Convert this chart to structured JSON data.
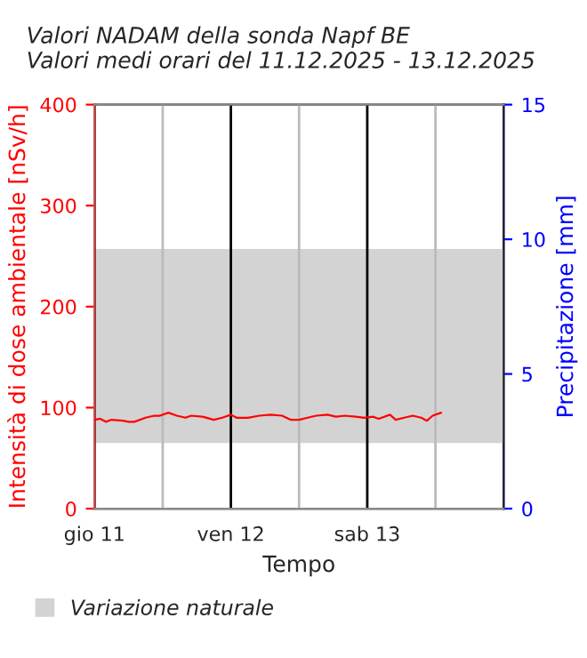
{
  "chart_data": {
    "type": "line",
    "title": "Valori NADAM della sonda Napf BE\nValori medi orari del 11.12.2025 - 13.12.2025",
    "xlabel": "Tempo",
    "ylabel": "Intensità di dose ambientale [nSv/h]",
    "y2label": "Precipitazione [mm]",
    "series": [
      {
        "color": "#ff0000",
        "x": [
          "2025-12-11T00:00",
          "2025-12-11T01:00",
          "2025-12-11T02:00",
          "2025-12-11T03:00",
          "2025-12-11T05:00",
          "2025-12-11T06:00",
          "2025-12-11T07:00",
          "2025-12-11T09:00",
          "2025-12-11T10:30",
          "2025-12-11T11:30",
          "2025-12-11T13:00",
          "2025-12-11T14:30",
          "2025-12-11T16:00",
          "2025-12-11T17:00",
          "2025-12-11T19:00",
          "2025-12-11T21:00",
          "2025-12-11T22:30",
          "2025-12-12T00:00",
          "2025-12-12T01:00",
          "2025-12-12T03:00",
          "2025-12-12T05:00",
          "2025-12-12T07:00",
          "2025-12-12T09:00",
          "2025-12-12T10:30",
          "2025-12-12T12:00",
          "2025-12-12T13:30",
          "2025-12-12T15:00",
          "2025-12-12T17:00",
          "2025-12-12T18:30",
          "2025-12-12T20:00",
          "2025-12-12T22:00",
          "2025-12-12T23:30",
          "2025-12-13T01:00",
          "2025-12-13T02:00",
          "2025-12-13T04:00",
          "2025-12-13T05:00",
          "2025-12-13T06:30",
          "2025-12-13T08:00",
          "2025-12-13T09:30",
          "2025-12-13T10:30",
          "2025-12-13T11:30",
          "2025-12-13T13:00"
        ],
        "values": [
          88,
          89,
          86,
          88,
          87,
          86,
          86,
          90,
          92,
          92,
          95,
          92,
          90,
          92,
          91,
          88,
          90,
          93,
          90,
          90,
          92,
          93,
          92,
          88,
          88,
          90,
          92,
          93,
          91,
          92,
          91,
          90,
          91,
          89,
          93,
          88,
          90,
          92,
          90,
          87,
          92,
          95
        ]
      }
    ],
    "xlim": [
      "2025-12-11T00:00",
      "2025-12-14T00:00"
    ],
    "xticks": [
      {
        "value": "2025-12-11T00:00",
        "label": "gio 11"
      },
      {
        "value": "2025-12-11T12:00",
        "label": null
      },
      {
        "value": "2025-12-12T00:00",
        "label": "ven 12"
      },
      {
        "value": "2025-12-12T12:00",
        "label": null
      },
      {
        "value": "2025-12-13T00:00",
        "label": "sab 13"
      },
      {
        "value": "2025-12-13T12:00",
        "label": null
      }
    ],
    "ylim": [
      0,
      400
    ],
    "yticks": [
      0,
      100,
      200,
      300,
      400
    ],
    "y2lim": [
      0,
      15
    ],
    "y2ticks": [
      0,
      5,
      10,
      15
    ],
    "bands": [
      {
        "axis": "y",
        "from": 65,
        "to": 257,
        "label": "Variazione naturale",
        "color": "#d3d3d3"
      }
    ],
    "grid": "x",
    "legend": "bottom",
    "marker": "none",
    "line_style": "solid"
  }
}
